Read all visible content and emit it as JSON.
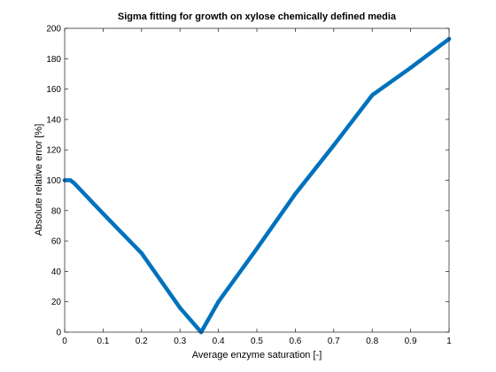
{
  "chart_data": {
    "type": "line",
    "title": "Sigma fitting for growth on xylose chemically defined media",
    "xlabel": "Average enzyme saturation [-]",
    "ylabel": "Absolute relative error [%]",
    "xlim": [
      0,
      1
    ],
    "ylim": [
      0,
      200
    ],
    "xticks": [
      "0",
      "0.1",
      "0.2",
      "0.3",
      "0.4",
      "0.5",
      "0.6",
      "0.7",
      "0.8",
      "0.9",
      "1"
    ],
    "yticks": [
      "0",
      "20",
      "40",
      "60",
      "80",
      "100",
      "120",
      "140",
      "160",
      "180",
      "200"
    ],
    "grid": false,
    "series": [
      {
        "color": "#0072BD",
        "x": [
          0.0,
          0.015,
          0.025,
          0.1,
          0.2,
          0.3,
          0.355,
          0.4,
          0.5,
          0.6,
          0.7,
          0.8,
          0.9,
          1.0
        ],
        "y": [
          100,
          100,
          98,
          78,
          52,
          16,
          0,
          20,
          55,
          91,
          123,
          156,
          174,
          193
        ]
      }
    ]
  }
}
